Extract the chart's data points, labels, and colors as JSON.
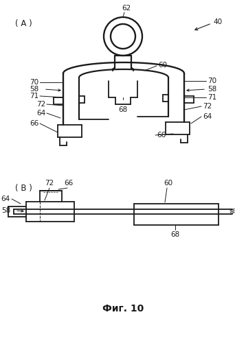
{
  "title": "Фиг. 10",
  "bg_color": "#ffffff",
  "line_color": "#1a1a1a",
  "label_A": "( А )",
  "label_B": "( В )",
  "fs_label": 8.5,
  "fs_ref": 7.5,
  "fs_title": 10
}
